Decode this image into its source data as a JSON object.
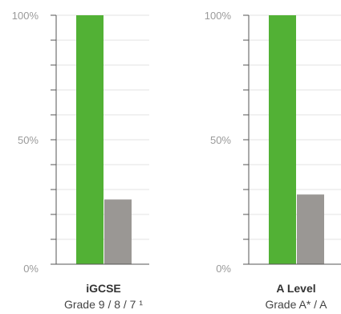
{
  "colors": {
    "primary": "#52b135",
    "secondary": "#9a9794",
    "axis": "#555555",
    "grid": "#e3e3e3",
    "tick_text": "#9a9a9a"
  },
  "chart_data": [
    {
      "type": "bar",
      "category": "iGCSE",
      "subtitle": "Grade 9 / 8 / 7 ¹",
      "values": [
        100,
        26
      ],
      "ylim": [
        0,
        100
      ],
      "y_ticks": [
        "0%",
        "50%",
        "100%"
      ],
      "grid": true
    },
    {
      "type": "bar",
      "category": "A Level",
      "subtitle": "Grade A* / A",
      "values": [
        100,
        28
      ],
      "ylim": [
        0,
        100
      ],
      "y_ticks": [
        "0%",
        "50%",
        "100%"
      ],
      "grid": true
    }
  ]
}
